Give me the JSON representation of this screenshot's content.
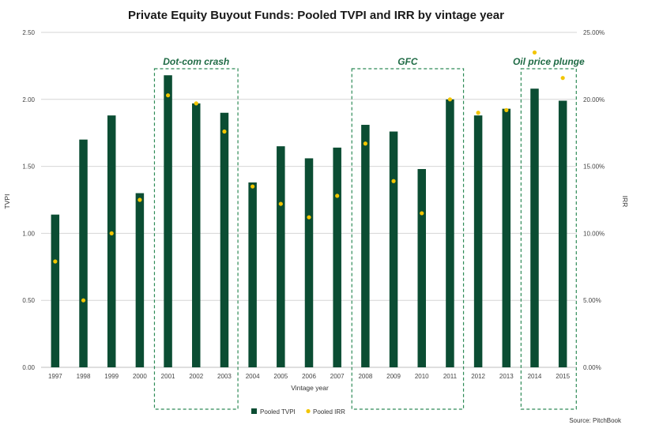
{
  "chart_data": {
    "type": "bar",
    "title": "Private Equity Buyout Funds: Pooled TVPI and IRR by vintage year",
    "xlabel": "Vintage year",
    "ylabel": "TVPI",
    "y2label": "IRR",
    "categories": [
      "1997",
      "1998",
      "1999",
      "2000",
      "2001",
      "2002",
      "2003",
      "2004",
      "2005",
      "2006",
      "2007",
      "2008",
      "2009",
      "2010",
      "2011",
      "2012",
      "2013",
      "2014",
      "2015"
    ],
    "ylim": [
      0,
      2.5
    ],
    "y2lim": [
      0,
      0.25
    ],
    "yticks": [
      "0.00",
      "0.50",
      "1.00",
      "1.50",
      "2.00",
      "2.50"
    ],
    "y2ticks": [
      "0.00%",
      "5.00%",
      "10.00%",
      "15.00%",
      "20.00%",
      "25.00%"
    ],
    "grid": true,
    "series": [
      {
        "name": "Pooled TVPI",
        "type": "bar",
        "axis": "left",
        "color": "#0b4d33",
        "values": [
          1.14,
          1.7,
          1.88,
          1.3,
          2.18,
          1.97,
          1.9,
          1.38,
          1.65,
          1.56,
          1.64,
          1.81,
          1.76,
          1.48,
          2.0,
          1.88,
          1.93,
          2.08,
          1.99
        ]
      },
      {
        "name": "Pooled IRR",
        "type": "scatter",
        "axis": "right",
        "color": "#f2c500",
        "values": [
          0.079,
          0.05,
          0.1,
          0.125,
          0.203,
          0.197,
          0.176,
          0.135,
          0.122,
          0.112,
          0.128,
          0.167,
          0.139,
          0.115,
          0.2,
          0.19,
          0.192,
          0.235,
          0.216
        ]
      }
    ],
    "annotations": [
      {
        "label": "Dot-com crash",
        "from": "2001",
        "to": "2003"
      },
      {
        "label": "GFC",
        "from": "2008",
        "to": "2011"
      },
      {
        "label": "Oil price plunge",
        "from": "2014",
        "to": "2015"
      }
    ],
    "legend": "bottom-center",
    "source": "Source: PitchBook"
  },
  "colors": {
    "bar": "#0b4d33",
    "dot": "#f2c500",
    "annotation": "#2e8b57",
    "annotation_text": "#1f6b45",
    "grid": "#d6d6d6"
  }
}
